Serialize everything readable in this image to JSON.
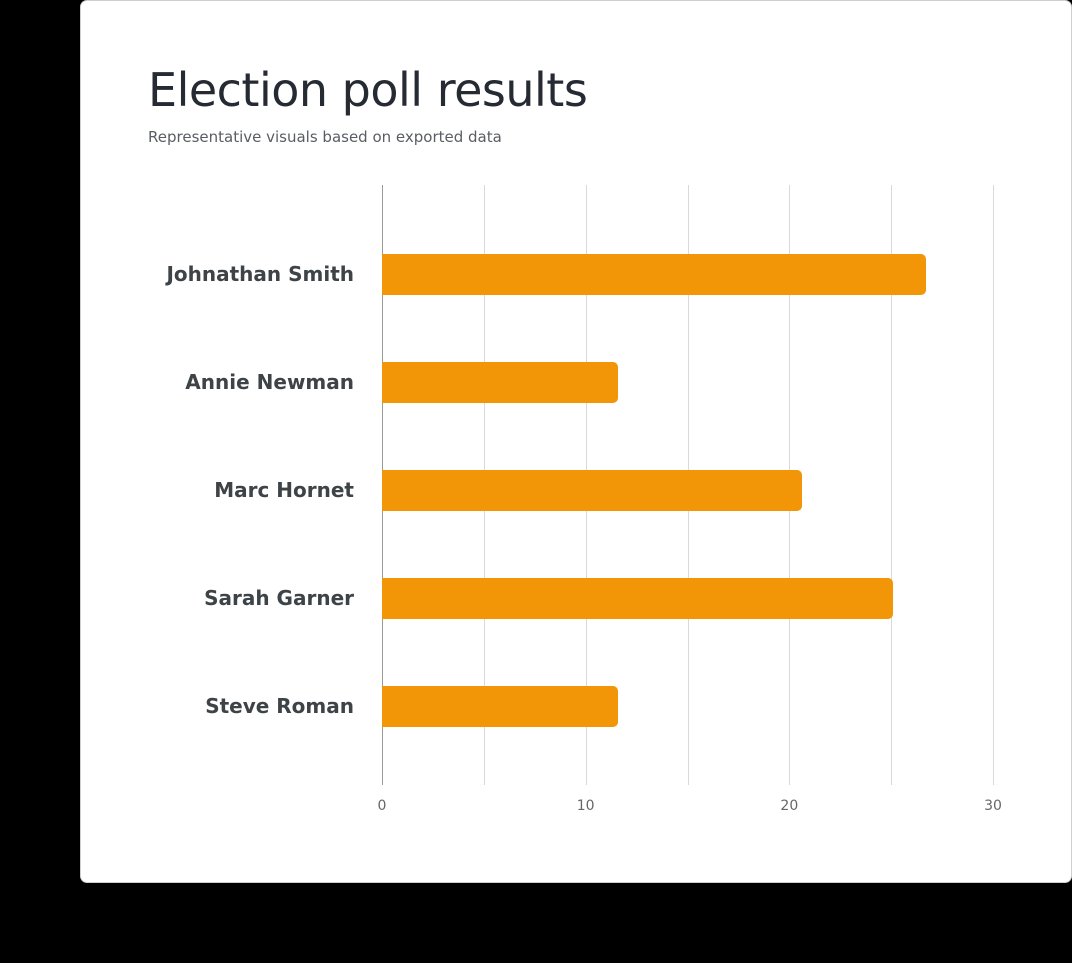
{
  "title": "Election poll results",
  "subtitle": "Representative visuals based on exported data",
  "colors": {
    "bar": "#F29507",
    "background": "#000000",
    "card": "#FFFFFF"
  },
  "x_ticks": [
    "0",
    "10",
    "20",
    "30"
  ],
  "chart_data": {
    "type": "bar",
    "orientation": "horizontal",
    "title": "Election poll results",
    "subtitle": "Representative visuals based on exported data",
    "categories": [
      "Johnathan Smith",
      "Annie Newman",
      "Marc Hornet",
      "Sarah Garner",
      "Steve Roman"
    ],
    "values": [
      26.7,
      11.6,
      20.6,
      25.1,
      11.6
    ],
    "xlabel": "",
    "ylabel": "",
    "xlim": [
      0,
      30
    ],
    "x_ticks": [
      0,
      10,
      20,
      30
    ],
    "grid": {
      "vertical": true,
      "minor_step": 5
    },
    "legend": null
  }
}
